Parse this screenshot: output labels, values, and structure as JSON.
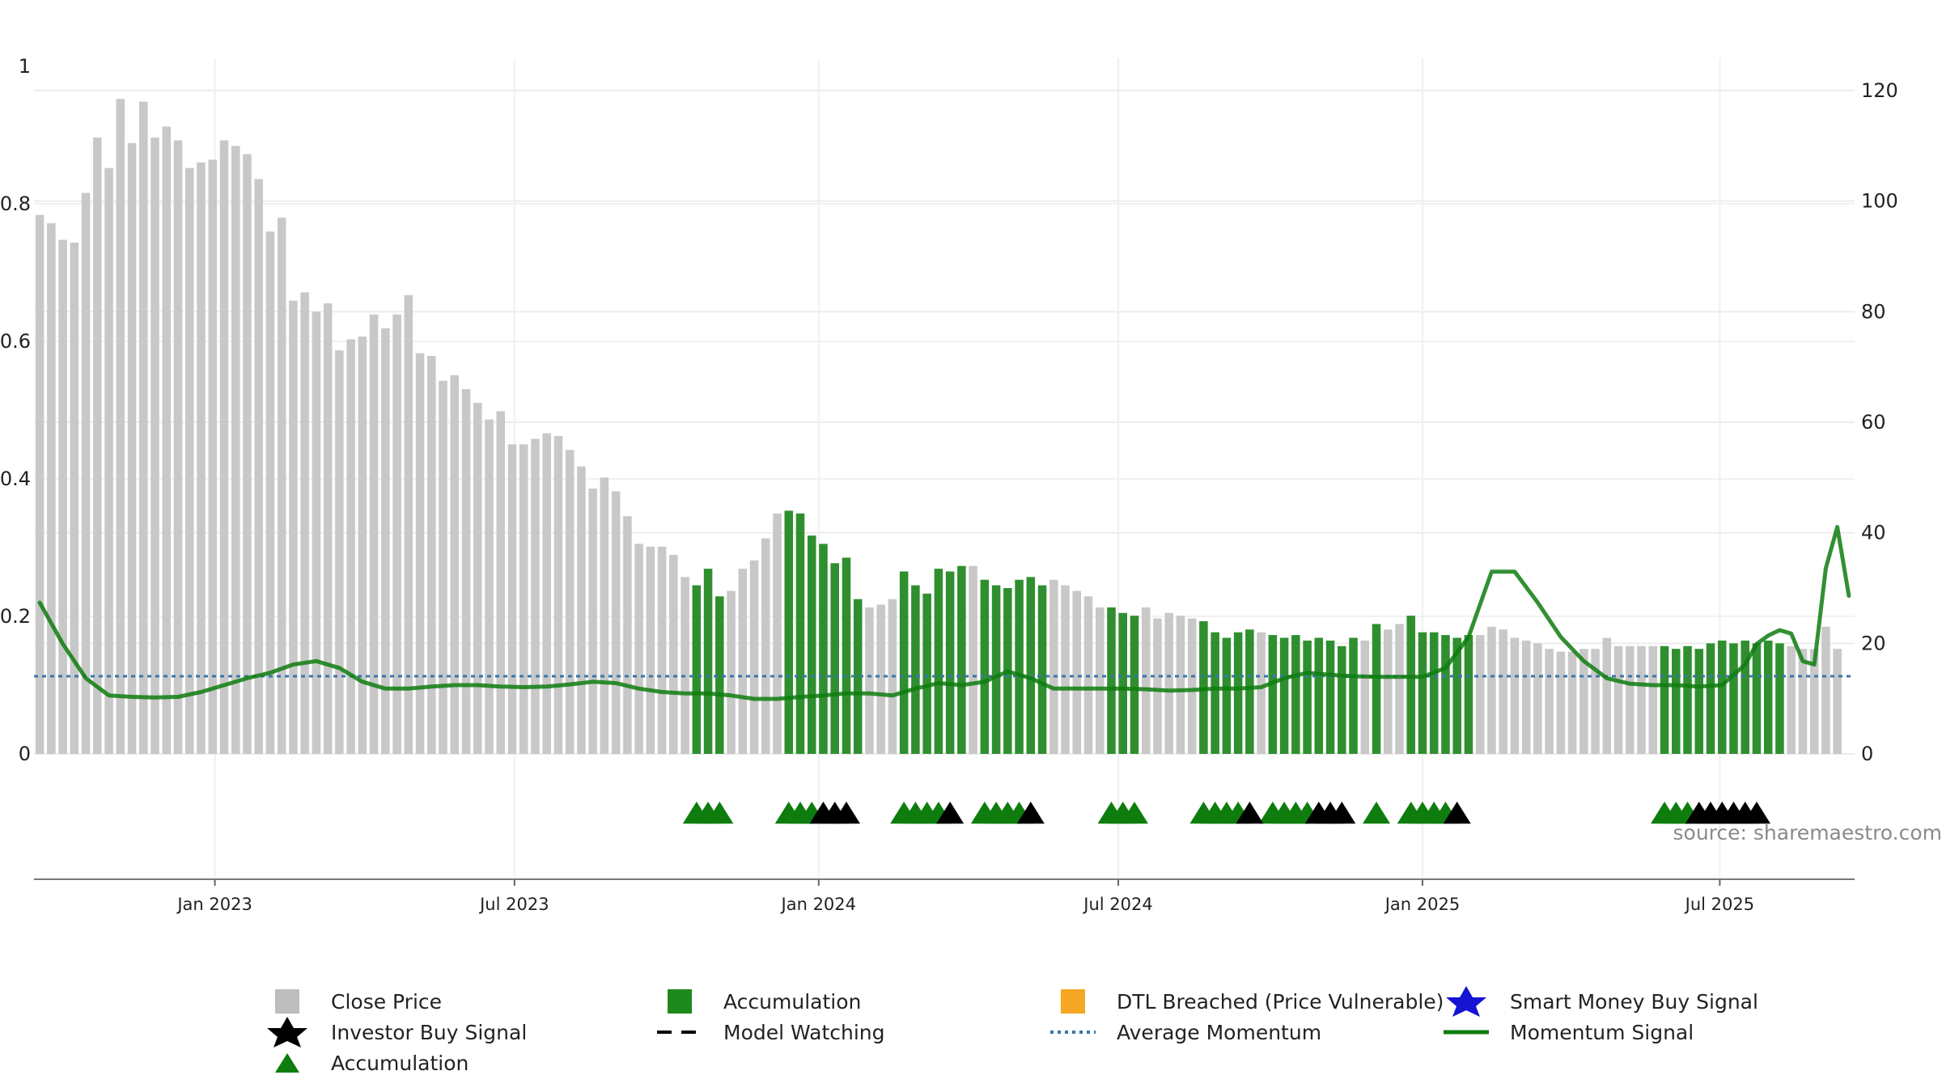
{
  "chart_data": {
    "type": "bar",
    "left_axis": {
      "ticks": [
        0,
        0.2,
        0.4,
        0.6,
        0.8,
        1
      ],
      "tick_labels": [
        "0",
        "0.2",
        "0.4",
        "0.6",
        "0.8",
        "1"
      ],
      "range": [
        0,
        1
      ]
    },
    "right_axis": {
      "ticks": [
        0,
        20,
        40,
        60,
        80,
        100,
        120
      ],
      "tick_labels": [
        "0",
        "20",
        "40",
        "60",
        "80",
        "100",
        "120"
      ],
      "range": [
        0,
        120
      ]
    },
    "x_axis": {
      "range_weeks": [
        0,
        157
      ],
      "tick_labels": [
        "Jan 2023",
        "Jul 2023",
        "Jan 2024",
        "Jul 2024",
        "Jan 2025",
        "Jul 2025"
      ],
      "tick_weeks": [
        15.2,
        41.2,
        67.6,
        93.6,
        120,
        145.8
      ]
    },
    "grid": true,
    "series": [
      {
        "name": "Close Price",
        "axis": "right",
        "values": [
          97.5,
          96,
          93,
          92.5,
          101.5,
          111.5,
          106,
          118.5,
          110.5,
          118,
          111.5,
          113.5,
          111,
          106,
          107,
          107.5,
          111,
          110,
          108.5,
          104,
          94.5,
          97,
          82,
          83.5,
          80,
          81.5,
          73,
          75,
          75.5,
          79.5,
          77,
          79.5,
          83,
          72.5,
          72,
          67.5,
          68.5,
          66,
          63.5,
          60.5,
          62,
          56,
          56,
          57,
          58,
          57.5,
          55,
          52,
          48,
          50,
          47.5,
          43,
          38,
          37.5,
          37.5,
          36,
          32,
          30.5,
          33.5,
          28.5,
          29.5,
          33.5,
          35,
          39,
          43.5,
          44,
          43.5,
          39.5,
          38,
          34.5,
          35.5,
          28,
          26.5,
          27,
          28,
          33,
          30.5,
          29,
          33.5,
          33,
          34,
          34,
          31.5,
          30.5,
          30,
          31.5,
          32,
          30.5,
          31.5,
          30.5,
          29.5,
          28.5,
          26.5,
          26.5,
          25.5,
          25,
          26.5,
          24.5,
          25.5,
          25,
          24.5,
          24,
          22,
          21,
          22,
          22.5,
          22,
          21.5,
          21,
          21.5,
          20.5,
          21,
          20.5,
          19.5,
          21,
          20.5,
          23.5,
          22.5,
          23.5,
          25,
          22,
          22,
          21.5,
          21,
          21.5,
          21.5,
          23,
          22.5,
          21,
          20.5,
          20,
          19,
          18.5,
          18.5,
          19,
          19,
          21,
          19.5,
          19.5,
          19.5,
          19.5,
          19.5,
          19,
          19.5,
          19,
          20,
          20.5,
          20,
          20.5,
          20,
          20.5,
          20,
          19.5,
          19,
          19,
          23,
          19
        ]
      },
      {
        "name": "Accumulation",
        "axis": "right",
        "type": "bar-highlight",
        "week_ranges": [
          [
            57,
            59
          ],
          [
            65,
            71
          ],
          [
            75,
            80
          ],
          [
            82,
            87
          ],
          [
            93,
            95
          ],
          [
            101,
            105
          ],
          [
            107,
            114
          ],
          [
            116,
            116
          ],
          [
            119,
            124
          ],
          [
            141,
            151
          ]
        ]
      },
      {
        "name": "Momentum Signal",
        "axis": "left",
        "type": "line",
        "x_weeks": [
          0,
          2,
          4,
          6,
          8,
          10,
          12,
          14,
          16,
          18,
          20,
          22,
          24,
          26,
          28,
          30,
          32,
          34,
          36,
          38,
          40,
          42,
          44,
          46,
          48,
          50,
          52,
          54,
          56,
          58,
          60,
          62,
          64,
          66,
          68,
          70,
          72,
          74,
          76,
          78,
          80,
          82,
          84,
          86,
          88,
          90,
          92,
          94,
          96,
          98,
          100,
          102,
          104,
          106,
          108,
          110,
          112,
          114,
          116,
          118,
          120,
          122,
          124,
          126,
          128,
          130,
          132,
          134,
          136,
          138,
          140,
          142,
          144,
          146,
          148,
          149,
          150,
          151,
          152,
          153,
          154,
          155,
          156,
          157
        ],
        "values": [
          0.22,
          0.16,
          0.11,
          0.085,
          0.083,
          0.082,
          0.083,
          0.09,
          0.1,
          0.11,
          0.118,
          0.13,
          0.135,
          0.125,
          0.105,
          0.095,
          0.095,
          0.098,
          0.1,
          0.1,
          0.098,
          0.097,
          0.098,
          0.101,
          0.105,
          0.103,
          0.095,
          0.09,
          0.088,
          0.088,
          0.085,
          0.08,
          0.08,
          0.083,
          0.085,
          0.088,
          0.088,
          0.085,
          0.095,
          0.103,
          0.1,
          0.105,
          0.12,
          0.11,
          0.095,
          0.095,
          0.095,
          0.095,
          0.094,
          0.092,
          0.093,
          0.095,
          0.095,
          0.097,
          0.11,
          0.118,
          0.115,
          0.113,
          0.112,
          0.112,
          0.112,
          0.125,
          0.17,
          0.265,
          0.265,
          0.22,
          0.17,
          0.135,
          0.11,
          0.102,
          0.1,
          0.1,
          0.098,
          0.1,
          0.13,
          0.16,
          0.172,
          0.18,
          0.175,
          0.135,
          0.13,
          0.27,
          0.33,
          0.23
        ]
      },
      {
        "name": "Average Momentum",
        "axis": "left",
        "type": "hline",
        "value": 0.113
      },
      {
        "name": "Accumulation",
        "type": "triangle-marker",
        "weeks": [
          57,
          58,
          59,
          65,
          66,
          67,
          75,
          76,
          77,
          78,
          82,
          83,
          84,
          85,
          93,
          94,
          95,
          101,
          102,
          103,
          104,
          107,
          108,
          109,
          110,
          116,
          119,
          120,
          121,
          122,
          141,
          142,
          143
        ]
      },
      {
        "name": "Investor Buy Signal",
        "type": "triangle-marker-black",
        "weeks": [
          68,
          69,
          70,
          79,
          86,
          105,
          111,
          112,
          113,
          123,
          144,
          145,
          146,
          147,
          148,
          149
        ]
      }
    ],
    "legend": {
      "placement": "bottom",
      "entries": [
        {
          "label": "Close Price",
          "symbol": "square",
          "color": "#bdbdbd"
        },
        {
          "label": "Accumulation",
          "symbol": "square",
          "color": "#1e8a1e"
        },
        {
          "label": "DTL Breached (Price Vulnerable)",
          "symbol": "square",
          "color": "#f5a623"
        },
        {
          "label": "Smart Money Buy Signal",
          "symbol": "star",
          "color": "#1414d2"
        },
        {
          "label": "Investor Buy Signal",
          "symbol": "star",
          "color": "#000000"
        },
        {
          "label": "Model Watching",
          "symbol": "dash",
          "color": "#000000"
        },
        {
          "label": "Average Momentum",
          "symbol": "dot",
          "color": "#3a76a8"
        },
        {
          "label": "Momentum Signal",
          "symbol": "line",
          "color": "#0e7d0e"
        },
        {
          "label": "Accumulation",
          "symbol": "triangle",
          "color": "#0e7d0e"
        }
      ]
    },
    "colors": {
      "close": "#c8c8c8",
      "accumulation": "#2f8f2f",
      "momentum": "#0e7d0e",
      "average": "#3a76a8",
      "triangle_green": "#0e7d0e",
      "triangle_black": "#000000"
    }
  },
  "source_text": "source: sharemaestro.com"
}
